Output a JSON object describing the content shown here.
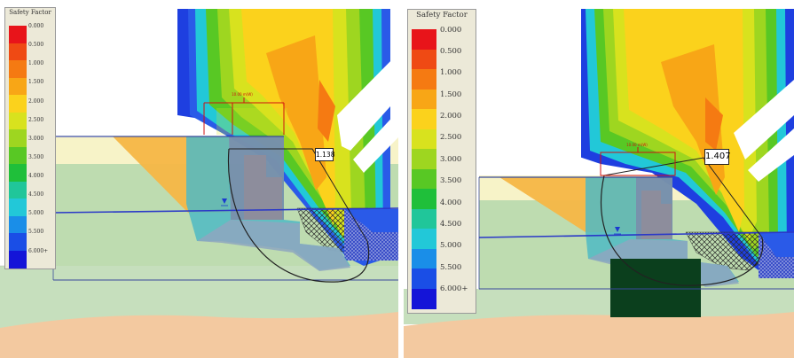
{
  "legend_left": {
    "title": "Safety Factor",
    "entries": [
      "0.000",
      "0.500",
      "1.000",
      "1.500",
      "2.000",
      "2.500",
      "3.000",
      "3.500",
      "4.000",
      "4.500",
      "5.000",
      "5.500",
      "6.000+"
    ]
  },
  "legend_right": {
    "title": "Safety Factor",
    "entries": [
      "0.000",
      "0.500",
      "1.000",
      "1.500",
      "2.000",
      "2.500",
      "3.000",
      "3.500",
      "4.000",
      "4.500",
      "5.000",
      "5.500",
      "6.000+"
    ]
  },
  "legend_colors": [
    "#e8141a",
    "#ef4a14",
    "#f57a12",
    "#f8a616",
    "#fbd21c",
    "#d8e21e",
    "#9ed620",
    "#58c824",
    "#1fbf3a",
    "#20c69a",
    "#22c8d8",
    "#1a8ee8",
    "#1a4ee6",
    "#1414d8"
  ],
  "left_panel": {
    "safety_factor": "1.138",
    "dimension_label": "10.00 m(W)"
  },
  "right_panel": {
    "safety_factor": "1.407",
    "dimension_label": "10.00 m(W)"
  }
}
